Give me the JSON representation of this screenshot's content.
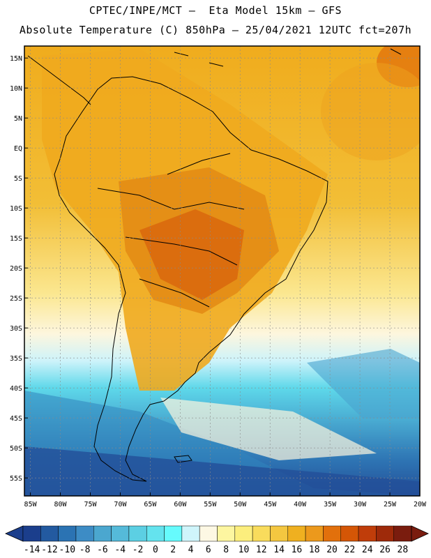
{
  "header": {
    "line1": "CPTEC/INPE/MCT –  Eta Model 15km – GFS",
    "line2": "Absolute Temperature (C) 850hPa – 25/04/2021 12UTC fct=207h"
  },
  "map": {
    "lat_labels": [
      "15N",
      "10N",
      "5N",
      "EQ",
      "5S",
      "10S",
      "15S",
      "20S",
      "25S",
      "30S",
      "35S",
      "40S",
      "45S",
      "50S",
      "55S"
    ],
    "lat_values": [
      15,
      10,
      5,
      0,
      -5,
      -10,
      -15,
      -20,
      -25,
      -30,
      -35,
      -40,
      -45,
      -50,
      -55
    ],
    "lon_labels": [
      "85W",
      "80W",
      "75W",
      "70W",
      "65W",
      "60W",
      "55W",
      "50W",
      "45W",
      "40W",
      "35W",
      "30W",
      "25W",
      "20W"
    ],
    "lon_values": [
      -85,
      -80,
      -75,
      -70,
      -65,
      -60,
      -55,
      -50,
      -45,
      -40,
      -35,
      -30,
      -25,
      -20
    ],
    "lon_range": [
      -86,
      -20
    ],
    "lat_range": [
      -58,
      17
    ]
  },
  "colorbar": {
    "labels": [
      "-14",
      "-12",
      "-10",
      "-8",
      "-6",
      "-4",
      "-2",
      "0",
      "2",
      "4",
      "6",
      "8",
      "10",
      "12",
      "14",
      "16",
      "18",
      "20",
      "22",
      "24",
      "26",
      "28"
    ],
    "colors": [
      "#1b3e8c",
      "#235aa0",
      "#2b73b3",
      "#3d8cc5",
      "#4ba7cf",
      "#55bad9",
      "#5ccfe3",
      "#64e3ee",
      "#66fbfd",
      "#cff5fb",
      "#fdf8e4",
      "#fdf6a0",
      "#fcee7d",
      "#f9dc5c",
      "#f4c740",
      "#efb020",
      "#ec991c",
      "#e2700c",
      "#d45606",
      "#c03d0a",
      "#9e2a0a",
      "#7a1c0e"
    ],
    "under_color": "#1b3e8c",
    "over_color": "#7a1c0e"
  }
}
